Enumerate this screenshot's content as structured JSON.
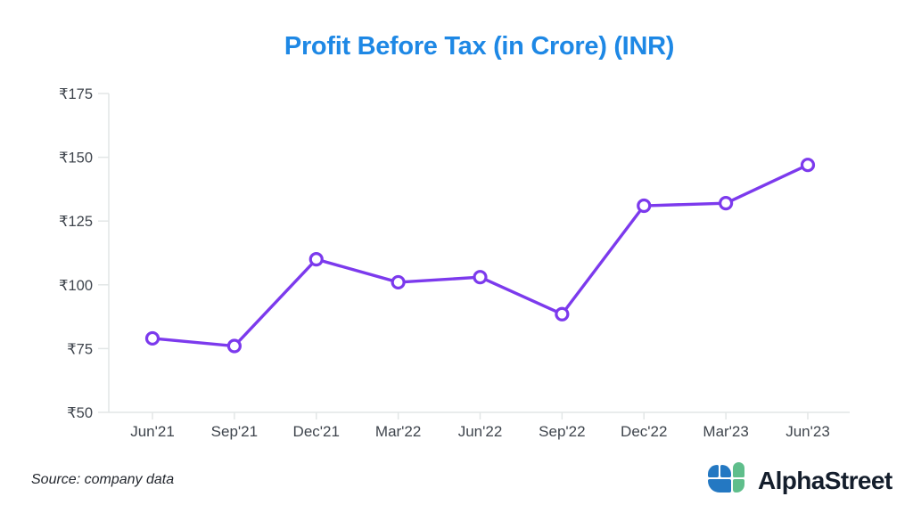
{
  "title": "Profit Before Tax (in Crore) (INR)",
  "source_note": "Source: company data",
  "brand": {
    "name": "AlphaStreet",
    "icon": "alphastreet-clover-icon",
    "icon_blue": "#2478c2",
    "icon_green": "#5fbe8b",
    "text_color": "#141e2c"
  },
  "colors": {
    "title": "#1e88e5",
    "axis_line": "#e2e6e6",
    "tick_label": "#3f454d"
  },
  "chart_data": {
    "type": "line",
    "title": "Profit Before Tax (in Crore) (INR)",
    "categories": [
      "Jun'21",
      "Sep'21",
      "Dec'21",
      "Mar'22",
      "Jun'22",
      "Sep'22",
      "Dec'22",
      "Mar'23",
      "Jun'23"
    ],
    "values": [
      79,
      76,
      110,
      101,
      103,
      88.5,
      131,
      132,
      147
    ],
    "xlabel": "",
    "ylabel": "",
    "ylim": [
      50,
      175
    ],
    "yticks": [
      50,
      75,
      100,
      125,
      150,
      175
    ],
    "ytick_prefix": "₹",
    "grid": false,
    "legend": false,
    "line_color": "#7c3aed",
    "marker": "open-circle",
    "marker_fill": "#ffffff"
  }
}
